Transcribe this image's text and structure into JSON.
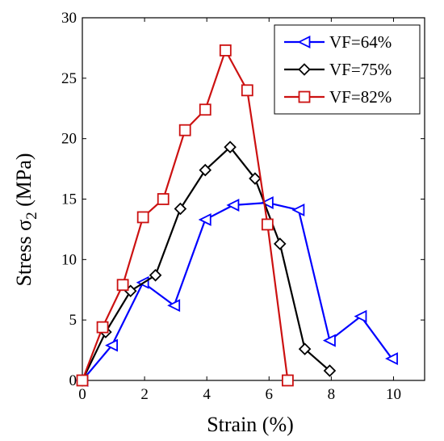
{
  "chart_data": {
    "type": "line",
    "xlabel": "Strain (%)",
    "ylabel": "Stress σ2 (MPa)",
    "ylabel_parts": {
      "prefix": "Stress σ",
      "subscript": "2",
      "suffix": " (MPa)"
    },
    "xlim": [
      0,
      11
    ],
    "ylim": [
      0,
      30
    ],
    "xticks": [
      "0",
      "2",
      "4",
      "6",
      "8",
      "10"
    ],
    "yticks": [
      "0",
      "5",
      "10",
      "15",
      "20",
      "25",
      "30"
    ],
    "grid": false,
    "legend_position": "top-right",
    "series": [
      {
        "name": "VF=64%",
        "color": "#0000ff",
        "marker": "triangle-left",
        "x": [
          0,
          0.95,
          1.95,
          2.95,
          3.95,
          4.85,
          5.95,
          6.95,
          7.95,
          8.95,
          9.95
        ],
        "y": [
          0,
          2.9,
          8.1,
          6.2,
          13.3,
          14.5,
          14.7,
          14.1,
          3.3,
          5.3,
          1.8
        ]
      },
      {
        "name": "VF=75%",
        "color": "#000000",
        "marker": "diamond",
        "x": [
          0,
          0.75,
          1.55,
          2.35,
          3.15,
          3.95,
          4.75,
          5.55,
          6.35,
          7.15,
          7.95
        ],
        "y": [
          0,
          4.0,
          7.4,
          8.7,
          14.2,
          17.4,
          19.3,
          16.7,
          11.3,
          2.6,
          0.8
        ]
      },
      {
        "name": "VF=82%",
        "color": "#cc1111",
        "marker": "square",
        "x": [
          0,
          0.65,
          1.3,
          1.95,
          2.6,
          3.3,
          3.95,
          4.6,
          5.3,
          5.95,
          6.6
        ],
        "y": [
          0,
          4.4,
          7.9,
          13.5,
          15.0,
          20.7,
          22.4,
          27.3,
          24.0,
          12.9,
          0
        ]
      }
    ]
  }
}
